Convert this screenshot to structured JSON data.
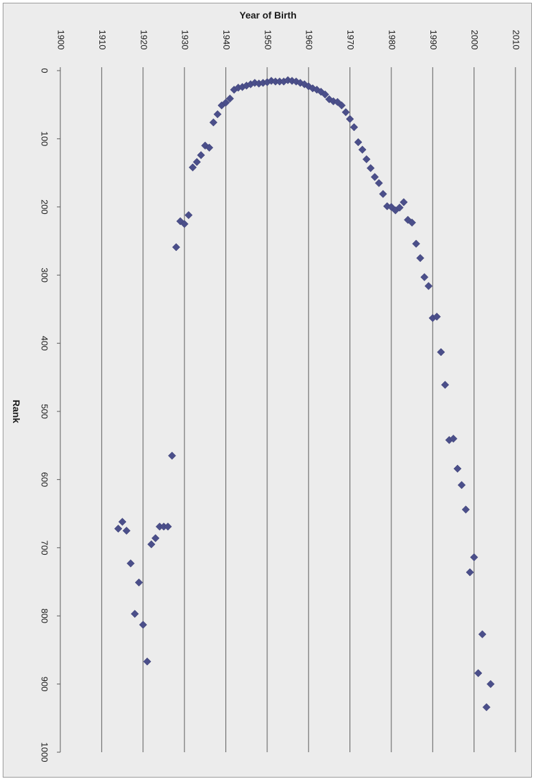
{
  "chart_data": {
    "type": "scatter",
    "xlabel": "Year of Birth",
    "ylabel": "Rank",
    "xlim": [
      1900,
      2010
    ],
    "ylim": [
      0,
      1000
    ],
    "x_ticks": [
      1900,
      1910,
      1920,
      1930,
      1940,
      1950,
      1960,
      1970,
      1980,
      1990,
      2000,
      2010
    ],
    "y_ticks": [
      0,
      100,
      200,
      300,
      400,
      500,
      600,
      700,
      800,
      900,
      1000
    ],
    "y_reversed": true,
    "grid": "vertical gridlines at x ticks",
    "marker": "diamond",
    "marker_color": "#4b4f8a",
    "points": [
      [
        1914,
        672
      ],
      [
        1915,
        662
      ],
      [
        1916,
        675
      ],
      [
        1917,
        723
      ],
      [
        1918,
        797
      ],
      [
        1919,
        751
      ],
      [
        1920,
        813
      ],
      [
        1921,
        867
      ],
      [
        1922,
        695
      ],
      [
        1923,
        686
      ],
      [
        1924,
        669
      ],
      [
        1925,
        669
      ],
      [
        1926,
        669
      ],
      [
        1927,
        565
      ],
      [
        1928,
        259
      ],
      [
        1929,
        221
      ],
      [
        1930,
        225
      ],
      [
        1931,
        212
      ],
      [
        1932,
        142
      ],
      [
        1933,
        134
      ],
      [
        1934,
        124
      ],
      [
        1935,
        110
      ],
      [
        1936,
        113
      ],
      [
        1937,
        76
      ],
      [
        1938,
        64
      ],
      [
        1939,
        51
      ],
      [
        1940,
        47
      ],
      [
        1941,
        41
      ],
      [
        1942,
        28
      ],
      [
        1943,
        25
      ],
      [
        1944,
        24
      ],
      [
        1945,
        22
      ],
      [
        1946,
        20
      ],
      [
        1947,
        18
      ],
      [
        1948,
        19
      ],
      [
        1949,
        18
      ],
      [
        1950,
        17
      ],
      [
        1951,
        15
      ],
      [
        1952,
        16
      ],
      [
        1953,
        16
      ],
      [
        1954,
        16
      ],
      [
        1955,
        14
      ],
      [
        1956,
        15
      ],
      [
        1957,
        16
      ],
      [
        1958,
        18
      ],
      [
        1959,
        20
      ],
      [
        1960,
        23
      ],
      [
        1961,
        26
      ],
      [
        1962,
        28
      ],
      [
        1963,
        31
      ],
      [
        1964,
        35
      ],
      [
        1965,
        42
      ],
      [
        1966,
        45
      ],
      [
        1967,
        46
      ],
      [
        1968,
        51
      ],
      [
        1969,
        61
      ],
      [
        1970,
        71
      ],
      [
        1971,
        83
      ],
      [
        1972,
        105
      ],
      [
        1973,
        116
      ],
      [
        1974,
        130
      ],
      [
        1975,
        143
      ],
      [
        1976,
        156
      ],
      [
        1977,
        165
      ],
      [
        1978,
        181
      ],
      [
        1979,
        199
      ],
      [
        1980,
        200
      ],
      [
        1981,
        205
      ],
      [
        1982,
        201
      ],
      [
        1983,
        193
      ],
      [
        1984,
        219
      ],
      [
        1985,
        223
      ],
      [
        1986,
        254
      ],
      [
        1987,
        275
      ],
      [
        1988,
        303
      ],
      [
        1989,
        316
      ],
      [
        1990,
        363
      ],
      [
        1991,
        361
      ],
      [
        1992,
        413
      ],
      [
        1993,
        461
      ],
      [
        1994,
        542
      ],
      [
        1995,
        540
      ],
      [
        1996,
        584
      ],
      [
        1997,
        608
      ],
      [
        1998,
        644
      ],
      [
        1999,
        736
      ],
      [
        2000,
        714
      ],
      [
        2001,
        884
      ],
      [
        2002,
        827
      ],
      [
        2003,
        934
      ],
      [
        2004,
        900
      ]
    ]
  }
}
